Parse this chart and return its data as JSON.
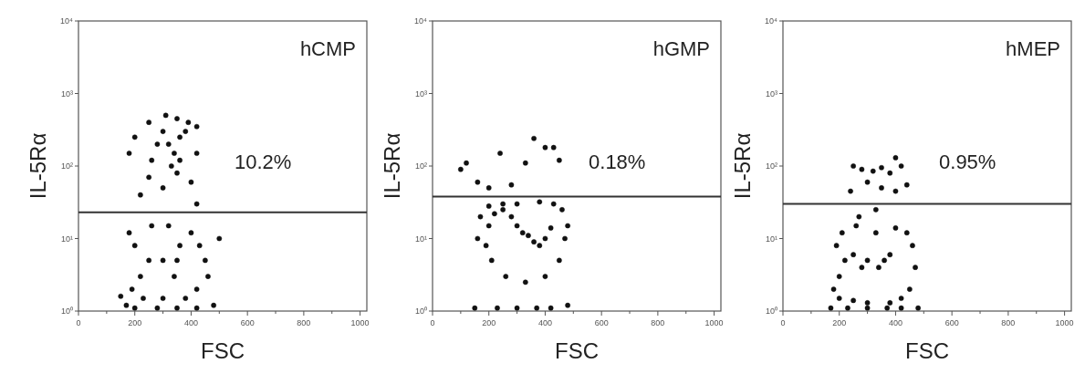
{
  "chart_data": [
    {
      "type": "scatter",
      "title": "hCMP",
      "xlabel": "FSC",
      "ylabel": "IL-5Rα",
      "annotations": [
        "10.2%"
      ],
      "log": "y",
      "marker": "circle",
      "xlim": [
        0,
        1024
      ],
      "ylim": [
        1,
        10000
      ],
      "xticks": [
        0,
        {
          "value": 100,
          "label": null
        },
        200,
        {
          "value": 300,
          "label": null
        },
        400,
        {
          "value": 500,
          "label": null
        },
        600,
        {
          "value": 700,
          "label": null
        },
        800,
        {
          "value": 900,
          "label": null
        },
        1000
      ],
      "yticks": [
        {
          "value": 1,
          "label": "10⁰"
        },
        {
          "value": 10,
          "label": "10¹"
        },
        {
          "value": 100,
          "label": "10²"
        },
        {
          "value": 1000,
          "label": "10³"
        },
        {
          "value": 10000,
          "label": "10⁴"
        }
      ],
      "ref_lines": [
        {
          "axis": "y",
          "value": 23,
          "color": "#333333"
        }
      ],
      "series": [
        {
          "color": "#111111",
          "x": [
            330,
            350,
            360,
            340,
            320,
            360,
            380,
            300,
            280,
            260,
            250,
            300,
            400,
            420,
            420,
            350,
            250,
            200,
            180,
            220,
            420,
            390,
            310,
            350,
            340,
            360,
            300,
            250,
            220,
            200,
            180,
            260,
            320,
            400,
            430,
            450,
            460,
            420,
            380,
            300,
            230,
            190,
            170,
            480,
            200,
            280,
            350,
            420,
            150,
            500
          ],
          "values": [
            100,
            80,
            120,
            150,
            200,
            250,
            300,
            300,
            200,
            120,
            70,
            50,
            60,
            150,
            350,
            450,
            400,
            250,
            150,
            40,
            30,
            400,
            500,
            5,
            3,
            8,
            5,
            5,
            3,
            8,
            12,
            15,
            15,
            12,
            8,
            5,
            3,
            2,
            1.5,
            1.5,
            1.5,
            2,
            1.2,
            1.2,
            1.1,
            1.1,
            1.1,
            1.1,
            1.6,
            10
          ]
        }
      ]
    },
    {
      "type": "scatter",
      "title": "hGMP",
      "xlabel": "FSC",
      "ylabel": "IL-5Rα",
      "annotations": [
        "0.18%"
      ],
      "log": "y",
      "marker": "circle",
      "xlim": [
        0,
        1024
      ],
      "ylim": [
        1,
        10000
      ],
      "xticks": [
        0,
        {
          "value": 100,
          "label": null
        },
        200,
        {
          "value": 300,
          "label": null
        },
        400,
        {
          "value": 500,
          "label": null
        },
        600,
        {
          "value": 700,
          "label": null
        },
        800,
        {
          "value": 900,
          "label": null
        },
        1000
      ],
      "yticks": [
        {
          "value": 1,
          "label": "10⁰"
        },
        {
          "value": 10,
          "label": "10¹"
        },
        {
          "value": 100,
          "label": "10²"
        },
        {
          "value": 1000,
          "label": "10³"
        },
        {
          "value": 10000,
          "label": "10⁴"
        }
      ],
      "ref_lines": [
        {
          "axis": "y",
          "value": 38,
          "color": "#333333"
        }
      ],
      "series": [
        {
          "color": "#111111",
          "x": [
            360,
            340,
            380,
            320,
            300,
            400,
            420,
            280,
            250,
            220,
            200,
            190,
            210,
            260,
            330,
            400,
            450,
            470,
            480,
            460,
            430,
            380,
            300,
            250,
            200,
            170,
            160,
            150,
            230,
            300,
            370,
            420,
            480,
            100,
            120,
            200,
            240,
            280,
            360,
            400,
            430,
            450,
            330,
            160
          ],
          "values": [
            9,
            11,
            8,
            12,
            15,
            10,
            14,
            20,
            25,
            22,
            15,
            8,
            5,
            3,
            2.5,
            3,
            5,
            10,
            15,
            25,
            30,
            32,
            30,
            30,
            28,
            20,
            10,
            1.1,
            1.1,
            1.1,
            1.1,
            1.1,
            1.2,
            90,
            110,
            50,
            150,
            55,
            240,
            180,
            180,
            120,
            110,
            60
          ]
        }
      ]
    },
    {
      "type": "scatter",
      "title": "hMEP",
      "xlabel": "FSC",
      "ylabel": "IL-5Rα",
      "annotations": [
        "0.95%"
      ],
      "log": "y",
      "marker": "circle",
      "xlim": [
        0,
        1024
      ],
      "ylim": [
        1,
        10000
      ],
      "xticks": [
        0,
        {
          "value": 100,
          "label": null
        },
        200,
        {
          "value": 300,
          "label": null
        },
        400,
        {
          "value": 500,
          "label": null
        },
        600,
        {
          "value": 700,
          "label": null
        },
        800,
        {
          "value": 900,
          "label": null
        },
        1000
      ],
      "yticks": [
        {
          "value": 1,
          "label": "10⁰"
        },
        {
          "value": 10,
          "label": "10¹"
        },
        {
          "value": 100,
          "label": "10²"
        },
        {
          "value": 1000,
          "label": "10³"
        },
        {
          "value": 10000,
          "label": "10⁴"
        }
      ],
      "ref_lines": [
        {
          "axis": "y",
          "value": 30,
          "color": "#333333"
        }
      ],
      "series": [
        {
          "color": "#111111",
          "x": [
            360,
            340,
            380,
            300,
            280,
            250,
            220,
            200,
            190,
            210,
            260,
            330,
            400,
            440,
            460,
            470,
            450,
            420,
            380,
            300,
            250,
            200,
            180,
            170,
            230,
            300,
            370,
            420,
            480,
            250,
            280,
            320,
            350,
            380,
            400,
            420,
            300,
            350,
            240,
            400,
            440,
            330,
            270
          ],
          "values": [
            5,
            4,
            6,
            5,
            4,
            6,
            5,
            3,
            8,
            12,
            15,
            12,
            14,
            12,
            8,
            4,
            2,
            1.5,
            1.3,
            1.3,
            1.4,
            1.5,
            2,
            1.1,
            1.1,
            1.1,
            1.1,
            1.1,
            1.1,
            100,
            90,
            85,
            95,
            80,
            130,
            100,
            60,
            50,
            45,
            45,
            55,
            25,
            20
          ]
        }
      ]
    }
  ]
}
